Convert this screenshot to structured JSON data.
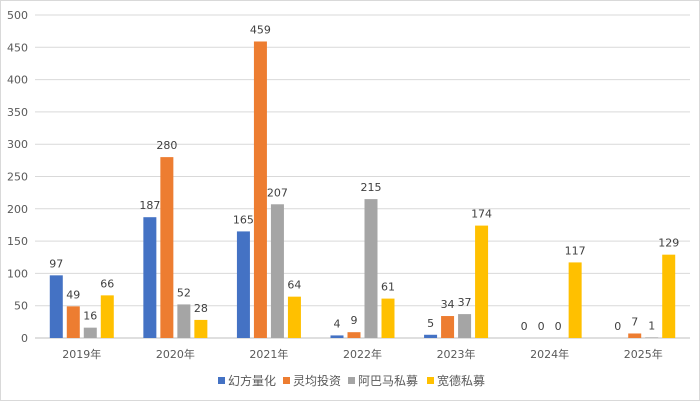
{
  "chart_data": {
    "type": "bar",
    "title": "",
    "xlabel": "",
    "ylabel": "",
    "categories": [
      "2019年",
      "2020年",
      "2021年",
      "2022年",
      "2023年",
      "2024年",
      "2025年"
    ],
    "series": [
      {
        "name": "幻方量化",
        "color": "#4472C4",
        "values": [
          97,
          187,
          165,
          4,
          5,
          0,
          0
        ]
      },
      {
        "name": "灵均投资",
        "color": "#ED7D31",
        "values": [
          49,
          280,
          459,
          9,
          34,
          0,
          7
        ]
      },
      {
        "name": "阿巴马私募",
        "color": "#A5A5A5",
        "values": [
          16,
          52,
          207,
          215,
          37,
          0,
          1
        ]
      },
      {
        "name": "宽德私募",
        "color": "#FFC000",
        "values": [
          66,
          28,
          64,
          61,
          174,
          117,
          129
        ]
      }
    ],
    "ylim": [
      0,
      500
    ],
    "yticks": [
      0,
      50,
      100,
      150,
      200,
      250,
      300,
      350,
      400,
      450,
      500
    ],
    "grid": true,
    "legend": "bottom",
    "data_labels": true
  }
}
